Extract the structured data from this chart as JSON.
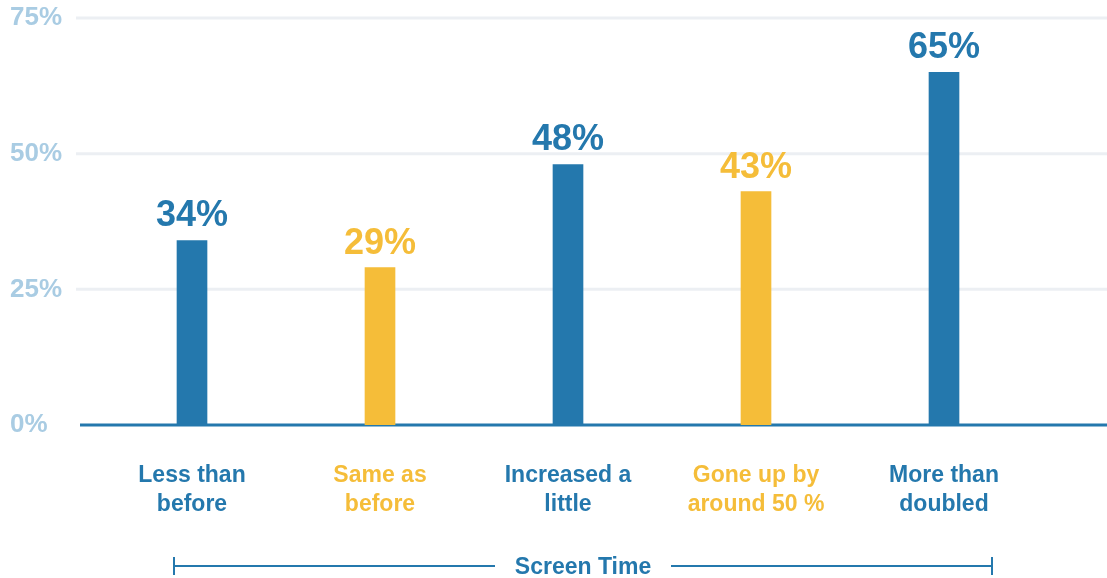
{
  "chart_data": {
    "type": "bar",
    "categories": [
      "Less than before",
      "Same as before",
      "Increased a little",
      "Gone up by around 50 %",
      "More than doubled"
    ],
    "values": [
      34,
      29,
      48,
      43,
      65
    ],
    "colors": [
      "#2478ad",
      "#f5bd39",
      "#2478ad",
      "#f5bd39",
      "#2478ad"
    ],
    "value_labels": [
      "34%",
      "29%",
      "48%",
      "43%",
      "65%"
    ],
    "xlabel": "Screen Time",
    "ylim": [
      0,
      75
    ],
    "yticks": [
      {
        "value": 0,
        "label": "0%"
      },
      {
        "value": 25,
        "label": "25%"
      },
      {
        "value": 50,
        "label": "50%"
      },
      {
        "value": 75,
        "label": "75%"
      }
    ],
    "grid": "y"
  }
}
